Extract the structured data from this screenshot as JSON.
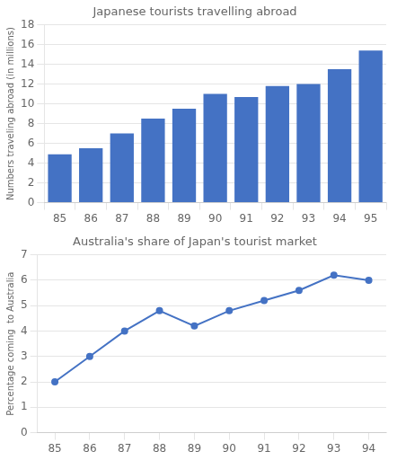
{
  "chart_data": [
    {
      "type": "bar",
      "title": "Japanese tourists travelling abroad",
      "ylabel": "Numbers traveling abroad (in millions)",
      "categories": [
        "85",
        "86",
        "87",
        "88",
        "89",
        "90",
        "91",
        "92",
        "93",
        "94",
        "95"
      ],
      "values": [
        4.9,
        5.5,
        7.0,
        8.5,
        9.5,
        11.0,
        10.7,
        11.8,
        12.0,
        13.5,
        15.4
      ],
      "color": "#4472C4",
      "ylim": [
        0,
        18
      ],
      "yticks": [
        0,
        2,
        4,
        6,
        8,
        10,
        12,
        14,
        16,
        18
      ],
      "grid": true
    },
    {
      "type": "line",
      "title": "Australia's share of Japan's tourist market",
      "ylabel": "Percentage coming  to Australia",
      "x": [
        85,
        86,
        87,
        88,
        89,
        90,
        91,
        92,
        93,
        94
      ],
      "values": [
        2.0,
        3.0,
        4.0,
        4.8,
        4.2,
        4.8,
        5.2,
        5.6,
        6.2,
        6.0
      ],
      "color": "#4472C4",
      "marker": "circle",
      "xlim": [
        84.5,
        94.5
      ],
      "xticks": [
        85,
        86,
        87,
        88,
        89,
        90,
        91,
        92,
        93,
        94
      ],
      "ylim": [
        0,
        7
      ],
      "yticks": [
        0,
        1,
        2,
        3,
        4,
        5,
        6,
        7
      ],
      "grid": true
    }
  ]
}
